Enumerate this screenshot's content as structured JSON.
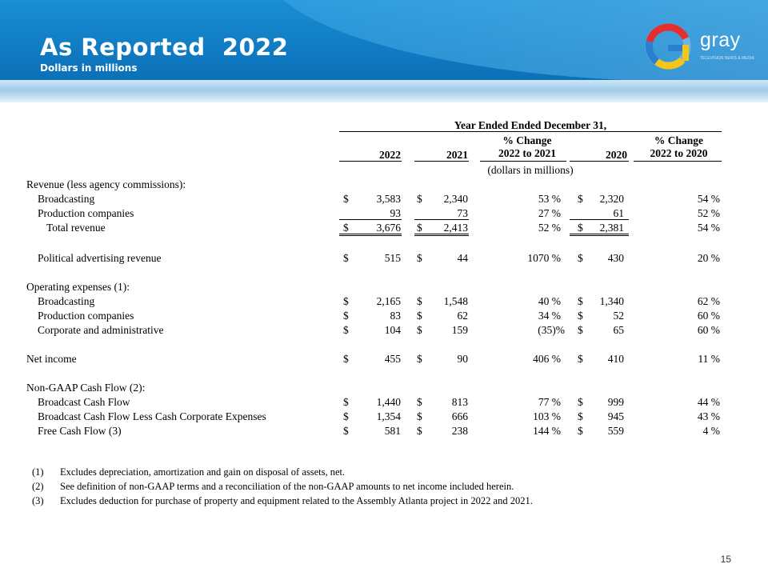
{
  "header": {
    "title": "As Reported  2022",
    "subtitle": "Dollars in millions",
    "logo": {
      "text": "gray",
      "tagline": "TELEVISION NEWS & MEDIA"
    }
  },
  "table": {
    "period_header": "Year Ended Ended December 31,",
    "col_2022": "2022",
    "col_2021": "2021",
    "pct1_line1": "% Change",
    "pct1_line2": "2022 to 2021",
    "col_2020": "2020",
    "pct2_line1": "% Change",
    "pct2_line2": "2022 to 2020",
    "units_note": "(dollars in millions)",
    "currency": "$",
    "revenue_header": "Revenue (less agency commissions):",
    "opex_header": "Operating expenses (1):",
    "nongaap_header": "Non-GAAP Cash Flow (2):",
    "rows": [
      {
        "label": "Broadcasting",
        "v2022": "3,583",
        "v2021": "2,340",
        "p1": "53 %",
        "v2020": "2,320",
        "p2": "54 %"
      },
      {
        "label": "Production companies",
        "v2022": "93",
        "v2021": "73",
        "p1": "27 %",
        "v2020": "61",
        "p2": "52 %"
      },
      {
        "label": "Total revenue",
        "v2022": "3,676",
        "v2021": "2,413",
        "p1": "52 %",
        "v2020": "2,381",
        "p2": "54 %"
      },
      {
        "label": "Political advertising revenue",
        "v2022": "515",
        "v2021": "44",
        "p1": "1070 %",
        "v2020": "430",
        "p2": "20 %"
      },
      {
        "label": "Broadcasting",
        "v2022": "2,165",
        "v2021": "1,548",
        "p1": "40 %",
        "v2020": "1,340",
        "p2": "62 %"
      },
      {
        "label": "Production companies",
        "v2022": "83",
        "v2021": "62",
        "p1": "34 %",
        "v2020": "52",
        "p2": "60 %"
      },
      {
        "label": "Corporate and administrative",
        "v2022": "104",
        "v2021": "159",
        "p1": "(35)%",
        "v2020": "65",
        "p2": "60 %"
      },
      {
        "label": "Net income",
        "v2022": "455",
        "v2021": "90",
        "p1": "406 %",
        "v2020": "410",
        "p2": "11 %"
      },
      {
        "label": "Broadcast Cash Flow",
        "v2022": "1,440",
        "v2021": "813",
        "p1": "77 %",
        "v2020": "999",
        "p2": "44 %"
      },
      {
        "label": "Broadcast Cash Flow Less Cash Corporate Expenses",
        "v2022": "1,354",
        "v2021": "666",
        "p1": "103 %",
        "v2020": "945",
        "p2": "43 %"
      },
      {
        "label": "Free Cash Flow (3)",
        "v2022": "581",
        "v2021": "238",
        "p1": "144 %",
        "v2020": "559",
        "p2": "4 %"
      }
    ]
  },
  "footnotes": [
    {
      "num": "(1)",
      "text": "Excludes depreciation, amortization and gain on disposal of assets, net."
    },
    {
      "num": "(2)",
      "text": "See definition of non-GAAP terms and a reconciliation of the non-GAAP amounts to net income included herein."
    },
    {
      "num": "(3)",
      "text": "Excludes deduction for purchase of property and equipment related to the Assembly Atlanta project in 2022 and 2021."
    }
  ],
  "page_number": "15",
  "colors": {
    "banner": "#0e78c0",
    "logo_red": "#e52f2f",
    "logo_yellow": "#f5c518",
    "logo_blue": "#2a7fd0"
  }
}
